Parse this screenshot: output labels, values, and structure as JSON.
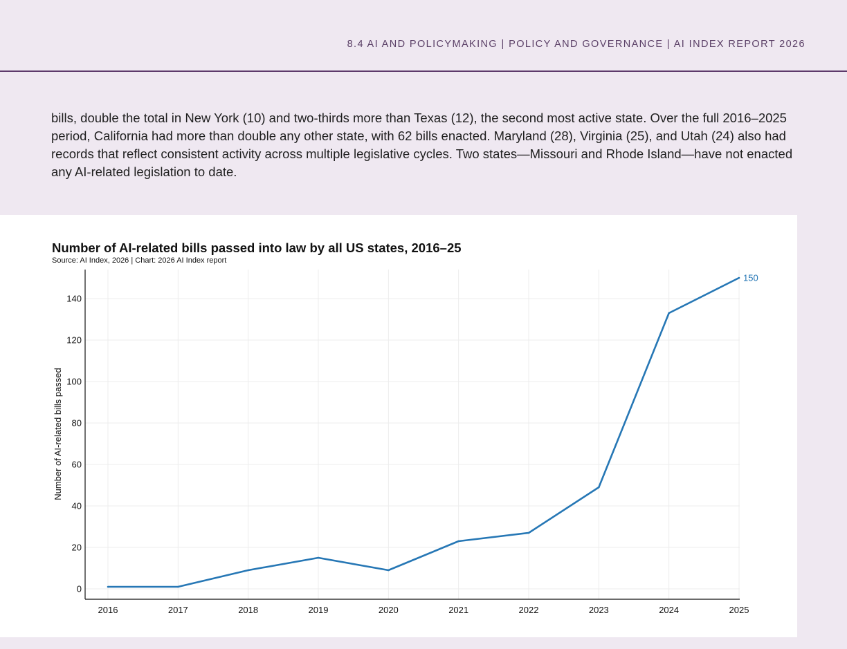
{
  "header": {
    "section": "8.4 AI AND POLICYMAKING",
    "separator": "|",
    "chapter": "POLICY AND GOVERNANCE",
    "report": "AI INDEX REPORT 2026"
  },
  "body": {
    "paragraph": "bills, double the total in New York (10) and two-thirds more than Texas (12), the second most active state. Over the full 2016–2025 period, California had more than double any other state, with 62 bills enacted. Maryland (28), Virginia (25), and Utah (24) also had records that reflect consistent activity across multiple legislative cycles. Two states—Missouri and Rhode Island—have not enacted any AI-related legislation to date."
  },
  "colors": {
    "background": "#efe8f1",
    "header_rule": "#5e3a6b",
    "line": "#2677b5",
    "grid": "#ececec"
  },
  "chart_data": {
    "type": "line",
    "title": "Number of AI-related bills passed into law by all US states, 2016–25",
    "source": "Source: AI Index, 2026 | Chart: 2026 AI Index report",
    "xlabel": "",
    "ylabel": "Number of AI-related bills passed",
    "x": [
      "2016",
      "2017",
      "2018",
      "2019",
      "2020",
      "2021",
      "2022",
      "2023",
      "2024",
      "2025"
    ],
    "series": [
      {
        "values": [
          1,
          1,
          9,
          15,
          9,
          23,
          27,
          49,
          133,
          150
        ]
      }
    ],
    "end_label": "150",
    "yticks": [
      0,
      20,
      40,
      60,
      80,
      100,
      120,
      140
    ],
    "ylim": [
      -5,
      155
    ],
    "grid": true,
    "legend": "none"
  }
}
